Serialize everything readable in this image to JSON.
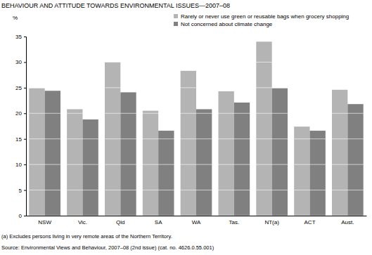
{
  "chart_data": {
    "type": "bar",
    "title": "BEHAVIOUR AND ATTITUDE TOWARDS ENVIRONMENTAL ISSUES—2007–08",
    "y_label": "%",
    "categories": [
      "NSW",
      "Vic.",
      "Qld",
      "SA",
      "WA",
      "Tas.",
      "NT(a)",
      "ACT",
      "Aust."
    ],
    "series": [
      {
        "name": "Rarely or never use green or reusable bags when grocery shopping",
        "color": "#b4b4b4",
        "values": [
          24.9,
          20.8,
          30.0,
          20.5,
          28.3,
          24.3,
          34.0,
          17.4,
          24.6
        ]
      },
      {
        "name": "Not concerned about climate change",
        "color": "#808080",
        "values": [
          24.4,
          18.8,
          24.1,
          16.6,
          20.8,
          22.1,
          24.9,
          16.6,
          21.8
        ]
      }
    ],
    "ylim": [
      0,
      35
    ],
    "yticks": [
      0,
      5,
      10,
      15,
      20,
      25,
      30,
      35
    ],
    "grid": true,
    "legend": "top",
    "footnotes": [
      "(a) Excludes persons living in very remote areas of the Northern Territory.",
      "Source: Environmental Views and Behaviour, 2007–08 (2nd issue) (cat. no. 4626.0.55.001)"
    ]
  }
}
